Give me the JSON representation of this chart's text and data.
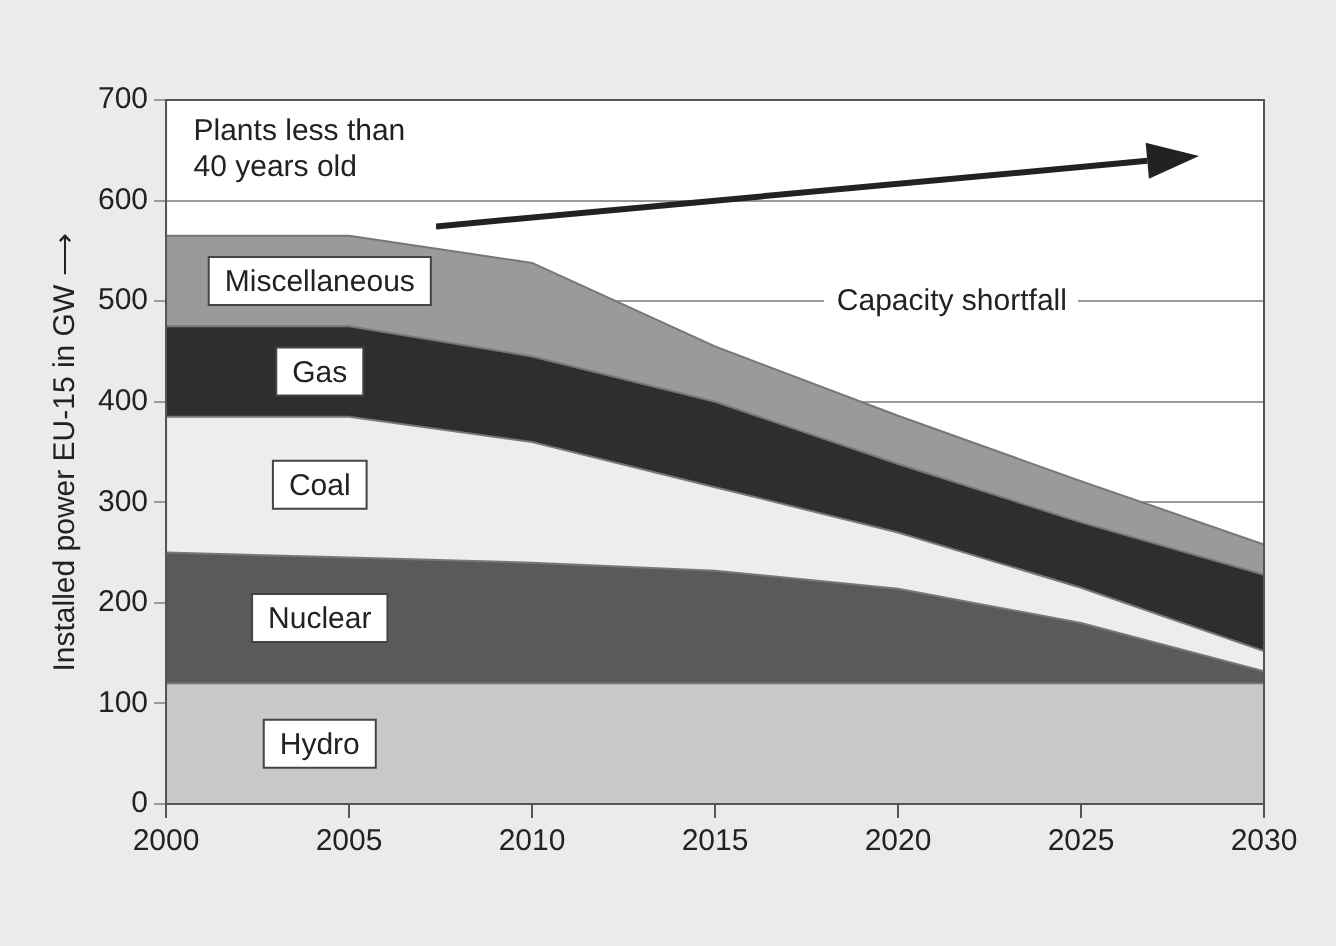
{
  "chart_data": {
    "type": "area",
    "stacked": true,
    "ylabel": "Installed power EU-15 in GW ⟶",
    "x": [
      2000,
      2005,
      2010,
      2015,
      2020,
      2025,
      2030
    ],
    "xlim": [
      2000,
      2030
    ],
    "xticks": [
      2000,
      2005,
      2010,
      2015,
      2020,
      2025,
      2030
    ],
    "ylim": [
      0,
      700
    ],
    "yticks": [
      0,
      100,
      200,
      300,
      400,
      500,
      600,
      700
    ],
    "grid": "y",
    "legend": false,
    "series": [
      {
        "name": "Hydro",
        "color": "#c8c8c8",
        "values": [
          120,
          120,
          120,
          120,
          120,
          120,
          120
        ]
      },
      {
        "name": "Nuclear",
        "color": "#5a5a5a",
        "values": [
          130,
          125,
          120,
          112,
          94,
          60,
          12
        ]
      },
      {
        "name": "Coal",
        "color": "#ededed",
        "values": [
          135,
          140,
          120,
          83,
          56,
          35,
          20
        ]
      },
      {
        "name": "Gas",
        "color": "#2e2e2e",
        "values": [
          90,
          90,
          85,
          85,
          68,
          65,
          76
        ]
      },
      {
        "name": "Miscellaneous",
        "color": "#9a9a9a",
        "values": [
          90,
          90,
          93,
          55,
          48,
          41,
          30
        ]
      }
    ],
    "annotations": [
      "Plants less than 40 years old",
      "Capacity shortfall"
    ]
  }
}
